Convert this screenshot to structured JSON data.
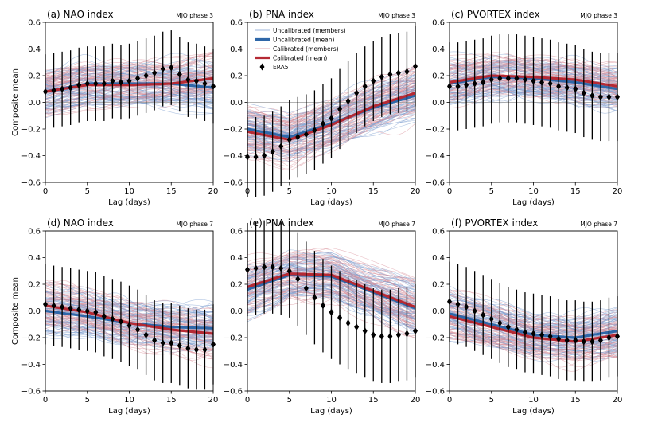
{
  "figure": {
    "x_axis_label": "Lag (days)",
    "y_axis_label": "Composite mean",
    "legend": {
      "items": [
        "Uncalibrated (members)",
        "Uncalibrated (mean)",
        "Calibrated (members)",
        "Calibrated (mean)",
        "ERA5"
      ],
      "location": "top-center of panel (b)"
    }
  },
  "colors": {
    "uncal_member": "#7c9ccf",
    "uncal_mean": "#2f67a8",
    "cal_member": "#d98f9a",
    "cal_mean": "#b52a34",
    "era5": "#000000"
  },
  "chart_data": [
    {
      "type": "line",
      "title": "(a) NAO index",
      "subtitle": "MJO phase 3",
      "xlabel": "Lag (days)",
      "ylabel": "Composite mean",
      "xlim": [
        0,
        20
      ],
      "ylim": [
        -0.6,
        0.6
      ],
      "xticks": [
        0,
        5,
        10,
        15,
        20
      ],
      "yticks": [
        -0.6,
        -0.4,
        -0.2,
        0.0,
        0.2,
        0.4,
        0.6
      ],
      "member_spread": 0.15,
      "series": [
        {
          "name": "Uncalibrated (mean)",
          "x": [
            0,
            5,
            10,
            15,
            20
          ],
          "values": [
            0.08,
            0.14,
            0.14,
            0.14,
            0.11
          ]
        },
        {
          "name": "Calibrated (mean)",
          "x": [
            0,
            5,
            10,
            15,
            20
          ],
          "values": [
            0.08,
            0.13,
            0.13,
            0.14,
            0.18
          ]
        },
        {
          "name": "ERA5",
          "x": [
            0,
            1,
            2,
            3,
            4,
            5,
            6,
            7,
            8,
            9,
            10,
            11,
            12,
            13,
            14,
            15,
            16,
            17,
            18,
            19,
            20
          ],
          "values": [
            0.08,
            0.09,
            0.1,
            0.11,
            0.13,
            0.14,
            0.14,
            0.14,
            0.16,
            0.15,
            0.16,
            0.18,
            0.2,
            0.22,
            0.25,
            0.26,
            0.21,
            0.17,
            0.16,
            0.14,
            0.12
          ],
          "error": 0.28
        }
      ]
    },
    {
      "type": "line",
      "title": "(b) PNA index",
      "subtitle": "MJO phase 3",
      "xlabel": "Lag (days)",
      "ylabel": "",
      "xlim": [
        0,
        20
      ],
      "ylim": [
        -0.6,
        0.6
      ],
      "xticks": [
        0,
        5,
        10,
        15,
        20
      ],
      "yticks": [
        -0.6,
        -0.4,
        -0.2,
        0.0,
        0.2,
        0.4,
        0.6
      ],
      "member_spread": 0.17,
      "series": [
        {
          "name": "Uncalibrated (mean)",
          "x": [
            0,
            5,
            10,
            15,
            20
          ],
          "values": [
            -0.2,
            -0.26,
            -0.16,
            -0.04,
            0.05
          ]
        },
        {
          "name": "Calibrated (mean)",
          "x": [
            0,
            5,
            10,
            15,
            20
          ],
          "values": [
            -0.22,
            -0.28,
            -0.17,
            -0.03,
            0.07
          ]
        },
        {
          "name": "ERA5",
          "x": [
            0,
            1,
            2,
            3,
            4,
            5,
            6,
            7,
            8,
            9,
            10,
            11,
            12,
            13,
            14,
            15,
            16,
            17,
            18,
            19,
            20
          ],
          "values": [
            -0.41,
            -0.41,
            -0.4,
            -0.37,
            -0.33,
            -0.28,
            -0.26,
            -0.24,
            -0.21,
            -0.16,
            -0.12,
            -0.05,
            0.01,
            0.07,
            0.12,
            0.16,
            0.19,
            0.21,
            0.22,
            0.23,
            0.27
          ],
          "error": 0.3
        }
      ]
    },
    {
      "type": "line",
      "title": "(c) PVORTEX index",
      "subtitle": "MJO phase 3",
      "xlabel": "Lag (days)",
      "ylabel": "",
      "xlim": [
        0,
        20
      ],
      "ylim": [
        -0.6,
        0.6
      ],
      "xticks": [
        0,
        5,
        10,
        15,
        20
      ],
      "yticks": [
        -0.6,
        -0.4,
        -0.2,
        0.0,
        0.2,
        0.4,
        0.6
      ],
      "member_spread": 0.13,
      "series": [
        {
          "name": "Uncalibrated (mean)",
          "x": [
            0,
            5,
            10,
            15,
            20
          ],
          "values": [
            0.14,
            0.19,
            0.18,
            0.15,
            0.1
          ]
        },
        {
          "name": "Calibrated (mean)",
          "x": [
            0,
            5,
            10,
            15,
            20
          ],
          "values": [
            0.15,
            0.2,
            0.19,
            0.17,
            0.12
          ]
        },
        {
          "name": "ERA5",
          "x": [
            0,
            1,
            2,
            3,
            4,
            5,
            6,
            7,
            8,
            9,
            10,
            11,
            12,
            13,
            14,
            15,
            16,
            17,
            18,
            19,
            20
          ],
          "values": [
            0.12,
            0.12,
            0.13,
            0.14,
            0.15,
            0.17,
            0.18,
            0.18,
            0.18,
            0.17,
            0.16,
            0.15,
            0.14,
            0.12,
            0.11,
            0.1,
            0.07,
            0.05,
            0.04,
            0.04,
            0.04
          ],
          "error": 0.33
        }
      ]
    },
    {
      "type": "line",
      "title": "(d) NAO index",
      "subtitle": "MJO phase 7",
      "xlabel": "Lag (days)",
      "ylabel": "Composite mean",
      "xlim": [
        0,
        20
      ],
      "ylim": [
        -0.6,
        0.6
      ],
      "xticks": [
        0,
        5,
        10,
        15,
        20
      ],
      "yticks": [
        -0.6,
        -0.4,
        -0.2,
        0.0,
        0.2,
        0.4,
        0.6
      ],
      "member_spread": 0.15,
      "series": [
        {
          "name": "Uncalibrated (mean)",
          "x": [
            0,
            5,
            10,
            15,
            20
          ],
          "values": [
            0.0,
            -0.04,
            -0.09,
            -0.12,
            -0.13
          ]
        },
        {
          "name": "Calibrated (mean)",
          "x": [
            0,
            5,
            10,
            15,
            20
          ],
          "values": [
            0.04,
            -0.01,
            -0.09,
            -0.14,
            -0.17
          ]
        },
        {
          "name": "ERA5",
          "x": [
            0,
            1,
            2,
            3,
            4,
            5,
            6,
            7,
            8,
            9,
            10,
            11,
            12,
            13,
            14,
            15,
            16,
            17,
            18,
            19,
            20
          ],
          "values": [
            0.05,
            0.04,
            0.03,
            0.02,
            0.01,
            0.0,
            -0.01,
            -0.04,
            -0.06,
            -0.08,
            -0.11,
            -0.14,
            -0.18,
            -0.22,
            -0.24,
            -0.24,
            -0.26,
            -0.28,
            -0.29,
            -0.29,
            -0.25
          ],
          "error": 0.3
        }
      ]
    },
    {
      "type": "line",
      "title": "(e) PNA index",
      "subtitle": "MJO phase 7",
      "xlabel": "Lag (days)",
      "ylabel": "",
      "xlim": [
        0,
        20
      ],
      "ylim": [
        -0.6,
        0.6
      ],
      "xticks": [
        0,
        5,
        10,
        15,
        20
      ],
      "yticks": [
        -0.6,
        -0.4,
        -0.2,
        0.0,
        0.2,
        0.4,
        0.6
      ],
      "member_spread": 0.17,
      "series": [
        {
          "name": "Uncalibrated (mean)",
          "x": [
            0,
            5,
            10,
            15,
            20
          ],
          "values": [
            0.16,
            0.27,
            0.26,
            0.14,
            0.02
          ]
        },
        {
          "name": "Calibrated (mean)",
          "x": [
            0,
            5,
            10,
            15,
            20
          ],
          "values": [
            0.18,
            0.28,
            0.27,
            0.15,
            0.03
          ]
        },
        {
          "name": "ERA5",
          "x": [
            0,
            1,
            2,
            3,
            4,
            5,
            6,
            7,
            8,
            9,
            10,
            11,
            12,
            13,
            14,
            15,
            16,
            17,
            18,
            19,
            20
          ],
          "values": [
            0.31,
            0.32,
            0.33,
            0.33,
            0.32,
            0.3,
            0.24,
            0.17,
            0.1,
            0.04,
            -0.01,
            -0.05,
            -0.09,
            -0.12,
            -0.15,
            -0.18,
            -0.19,
            -0.19,
            -0.18,
            -0.17,
            -0.15
          ],
          "error": 0.35
        }
      ]
    },
    {
      "type": "line",
      "title": "(f) PVORTEX index",
      "subtitle": "MJO phase 7",
      "xlabel": "Lag (days)",
      "ylabel": "",
      "xlim": [
        0,
        20
      ],
      "ylim": [
        -0.6,
        0.6
      ],
      "xticks": [
        0,
        5,
        10,
        15,
        20
      ],
      "yticks": [
        -0.6,
        -0.4,
        -0.2,
        0.0,
        0.2,
        0.4,
        0.6
      ],
      "member_spread": 0.14,
      "series": [
        {
          "name": "Uncalibrated (mean)",
          "x": [
            0,
            5,
            10,
            15,
            20
          ],
          "values": [
            -0.02,
            -0.1,
            -0.18,
            -0.2,
            -0.15
          ]
        },
        {
          "name": "Calibrated (mean)",
          "x": [
            0,
            5,
            10,
            15,
            20
          ],
          "values": [
            -0.04,
            -0.12,
            -0.2,
            -0.23,
            -0.18
          ]
        },
        {
          "name": "ERA5",
          "x": [
            0,
            1,
            2,
            3,
            4,
            5,
            6,
            7,
            8,
            9,
            10,
            11,
            12,
            13,
            14,
            15,
            16,
            17,
            18,
            19,
            20
          ],
          "values": [
            0.07,
            0.05,
            0.03,
            0.0,
            -0.03,
            -0.06,
            -0.09,
            -0.12,
            -0.14,
            -0.16,
            -0.17,
            -0.18,
            -0.19,
            -0.21,
            -0.22,
            -0.22,
            -0.23,
            -0.23,
            -0.22,
            -0.2,
            -0.19
          ],
          "error": 0.3
        }
      ]
    }
  ]
}
